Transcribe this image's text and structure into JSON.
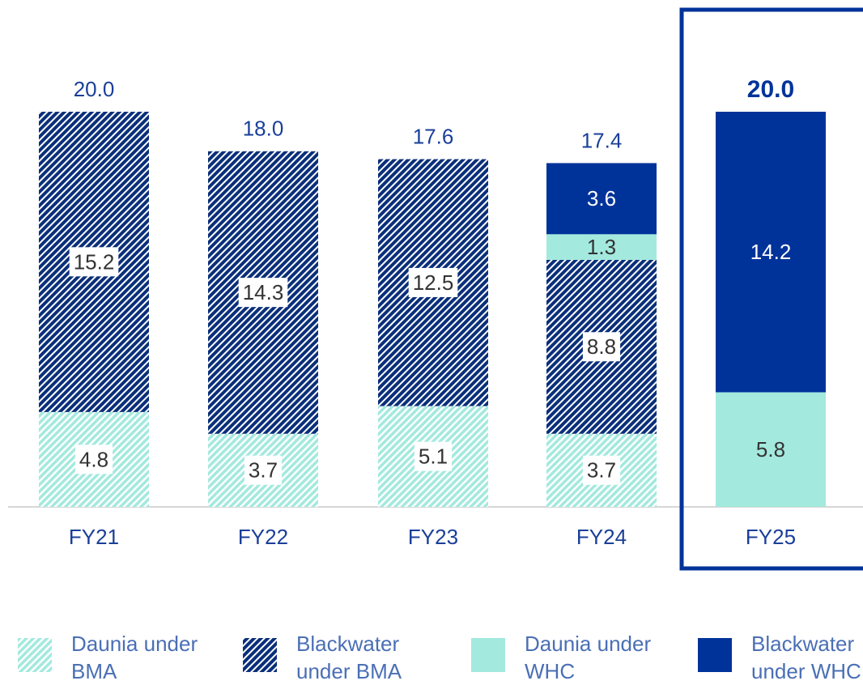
{
  "chart_data": {
    "type": "stacked_bar",
    "categories": [
      "FY21",
      "FY22",
      "FY23",
      "FY24",
      "FY25"
    ],
    "series": [
      {
        "name": "Daunia under BMA",
        "color": "#a3e9de",
        "pattern": true,
        "label_color": "#333333",
        "values": [
          4.8,
          3.7,
          5.1,
          3.7,
          null
        ]
      },
      {
        "name": "Blackwater under BMA",
        "color": "#0a2f7a",
        "pattern": true,
        "label_color": "#333333",
        "values": [
          15.2,
          14.3,
          12.5,
          8.8,
          null
        ]
      },
      {
        "name": "Daunia under WHC",
        "color": "#a3e9de",
        "pattern": false,
        "label_color": "#333333",
        "values": [
          null,
          null,
          null,
          1.3,
          5.8
        ]
      },
      {
        "name": "Blackwater under WHC",
        "color": "#00339a",
        "pattern": false,
        "label_color": "#ffffff",
        "values": [
          null,
          null,
          null,
          3.6,
          14.2
        ]
      }
    ],
    "totals": [
      20,
      18,
      17.6,
      17.4,
      20
    ],
    "total_labels": [
      "20.0",
      "18.0",
      "17.6",
      "17.4",
      "20.0"
    ],
    "highlight": "FY25",
    "ylim": [
      0,
      20
    ]
  }
}
